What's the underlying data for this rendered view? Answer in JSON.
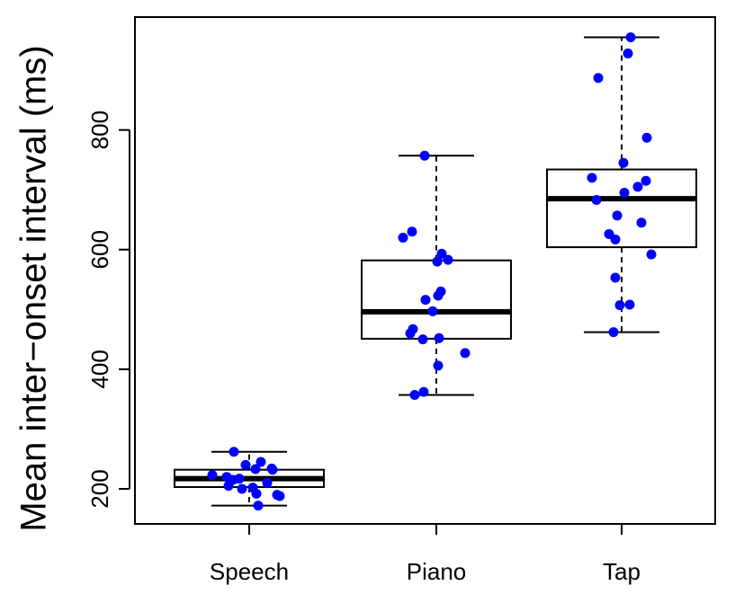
{
  "chart_data": {
    "type": "box",
    "title": "",
    "xlabel": "",
    "ylabel": "Mean inter−onset interval (ms)",
    "ylim": [
      145,
      975
    ],
    "yticks": [
      200,
      400,
      600,
      800
    ],
    "grid": false,
    "colors": {
      "points": "#0000ff",
      "box": "#000000"
    },
    "categories": [
      "Speech",
      "Piano",
      "Tap"
    ],
    "boxes": [
      {
        "category": "Speech",
        "min": 172,
        "q1": 203,
        "median": 217,
        "q3": 232,
        "max": 262
      },
      {
        "category": "Piano",
        "min": 357,
        "q1": 451,
        "median": 496,
        "q3": 582,
        "max": 757
      },
      {
        "category": "Tap",
        "min": 462,
        "q1": 604,
        "median": 685,
        "q3": 734,
        "max": 955
      }
    ],
    "points": [
      {
        "category": "Speech",
        "values": [
          262,
          245,
          240,
          234,
          233,
          232,
          223,
          220,
          217,
          215,
          210,
          205,
          202,
          200,
          192,
          190,
          188,
          172
        ]
      },
      {
        "category": "Piano",
        "values": [
          757,
          630,
          620,
          593,
          583,
          580,
          530,
          523,
          516,
          497,
          467,
          460,
          452,
          450,
          427,
          406,
          362,
          357
        ]
      },
      {
        "category": "Tap",
        "values": [
          955,
          928,
          887,
          787,
          745,
          720,
          715,
          705,
          695,
          683,
          657,
          645,
          626,
          617,
          592,
          553,
          508,
          507,
          462
        ]
      }
    ]
  }
}
